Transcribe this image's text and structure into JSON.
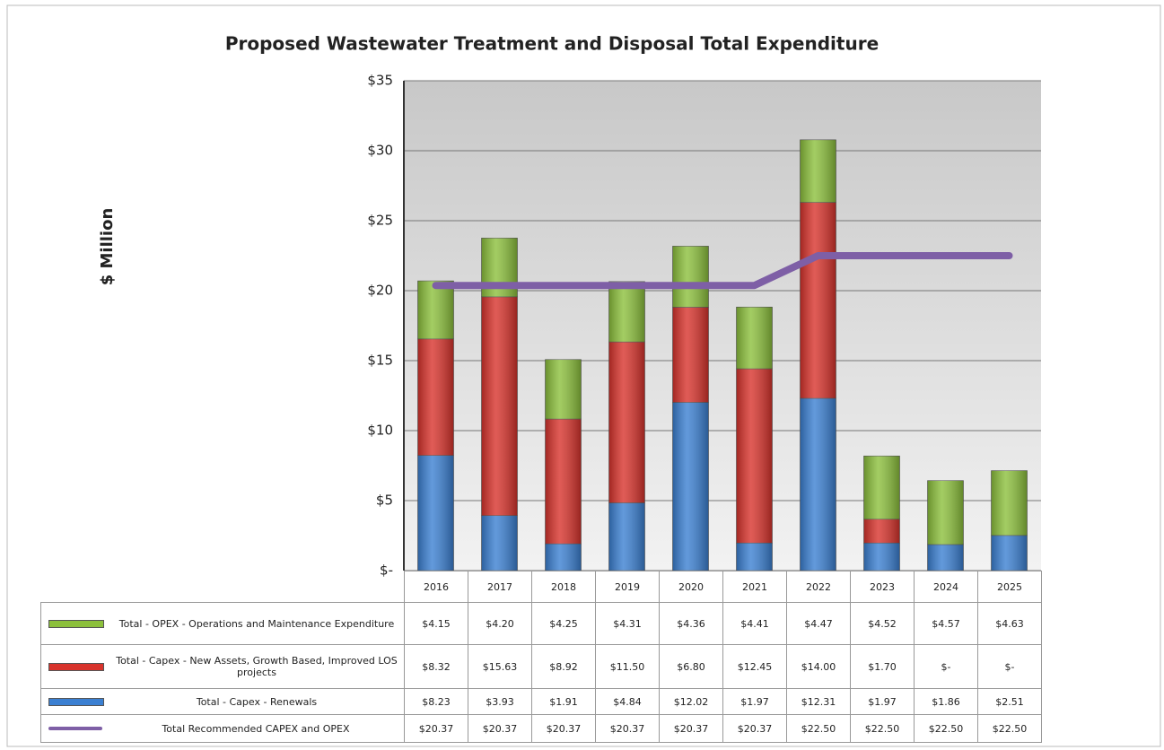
{
  "chart_data": {
    "type": "bar",
    "stacked": true,
    "title": "Proposed Wastewater  Treatment and Disposal Total Expenditure",
    "y_label": "$ Million",
    "categories": [
      "2016",
      "2017",
      "2018",
      "2019",
      "2020",
      "2021",
      "2022",
      "2023",
      "2024",
      "2025"
    ],
    "ylim": [
      0,
      35
    ],
    "yticks": [
      {
        "value": 0,
        "label": "$-"
      },
      {
        "value": 5,
        "label": "$5"
      },
      {
        "value": 10,
        "label": "$10"
      },
      {
        "value": 15,
        "label": "$15"
      },
      {
        "value": 20,
        "label": "$20"
      },
      {
        "value": 25,
        "label": "$25"
      },
      {
        "value": 30,
        "label": "$30"
      },
      {
        "value": 35,
        "label": "$35"
      }
    ],
    "grid": true,
    "series": [
      {
        "name": "Total - OPEX - Operations and Maintenance Expenditure",
        "color": "#8cc03c",
        "values": [
          4.15,
          4.2,
          4.25,
          4.31,
          4.36,
          4.41,
          4.47,
          4.52,
          4.57,
          4.63
        ],
        "value_labels": [
          "$4.15",
          "$4.20",
          "$4.25",
          "$4.31",
          "$4.36",
          "$4.41",
          "$4.47",
          "$4.52",
          "$4.57",
          "$4.63"
        ]
      },
      {
        "name": "Total - Capex - New Assets, Growth Based, Improved LOS projects",
        "color": "#d8332c",
        "values": [
          8.32,
          15.63,
          8.92,
          11.5,
          6.8,
          12.45,
          14.0,
          1.7,
          0,
          0
        ],
        "value_labels": [
          "$8.32",
          "$15.63",
          "$8.92",
          "$11.50",
          "$6.80",
          "$12.45",
          "$14.00",
          "$1.70",
          "$-",
          "$-"
        ]
      },
      {
        "name": "Total - Capex - Renewals",
        "color": "#3b80d2",
        "values": [
          8.23,
          3.93,
          1.91,
          4.84,
          12.02,
          1.97,
          12.31,
          1.97,
          1.86,
          2.51
        ],
        "value_labels": [
          "$8.23",
          "$3.93",
          "$1.91",
          "$4.84",
          "$12.02",
          "$1.97",
          "$12.31",
          "$1.97",
          "$1.86",
          "$2.51"
        ]
      },
      {
        "name": "Total Recommended CAPEX and OPEX",
        "color": "#7e5fa6",
        "type": "line",
        "values": [
          20.37,
          20.37,
          20.37,
          20.37,
          20.37,
          20.37,
          22.5,
          22.5,
          22.5,
          22.5
        ],
        "value_labels": [
          "$20.37",
          "$20.37",
          "$20.37",
          "$20.37",
          "$20.37",
          "$20.37",
          "$22.50",
          "$22.50",
          "$22.50",
          "$22.50"
        ]
      }
    ]
  }
}
